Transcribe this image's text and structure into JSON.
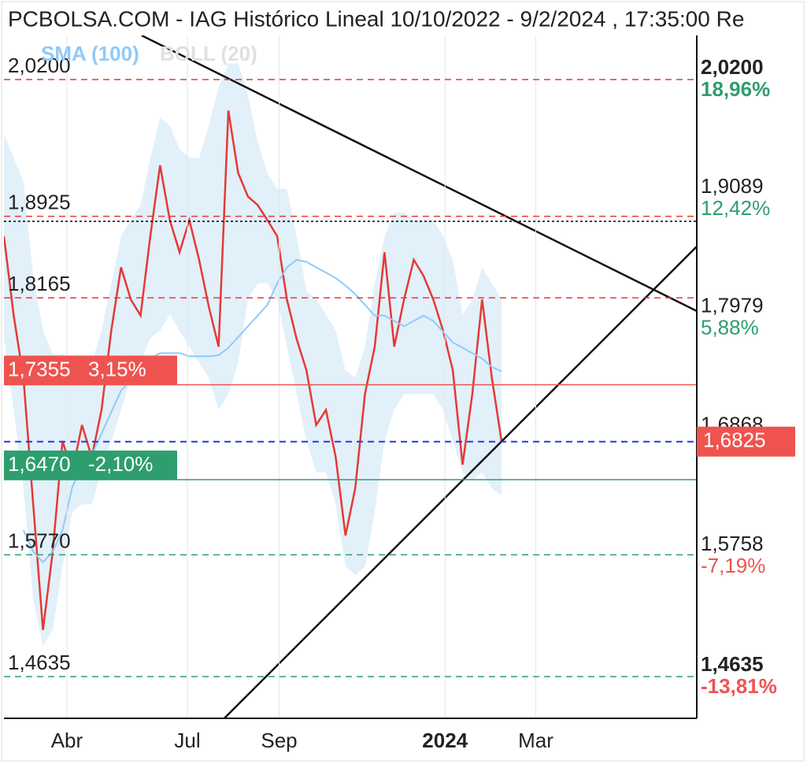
{
  "chart_data": {
    "type": "line",
    "title": "PCBOLSA.COM - IAG Histórico Lineal 10/10/2022 - 9/2/2024 , 17:35:00 Re",
    "x": [
      0,
      1,
      2,
      3,
      4,
      5,
      6,
      7,
      8,
      9,
      10,
      11,
      12,
      13,
      14,
      15,
      16,
      17,
      18,
      19,
      20,
      21,
      22,
      23,
      24,
      25,
      26,
      27,
      28,
      29,
      30,
      31,
      32,
      33,
      34,
      35,
      36,
      37,
      38,
      39,
      40,
      41,
      42,
      43,
      44,
      45,
      46,
      47,
      48,
      49,
      50,
      51
    ],
    "series": [
      {
        "color": "#e53935",
        "values": [
          1.874,
          1.8,
          1.742,
          1.624,
          1.507,
          1.58,
          1.683,
          1.654,
          1.698,
          1.668,
          1.712,
          1.786,
          1.845,
          1.815,
          1.8,
          1.874,
          1.94,
          1.889,
          1.859,
          1.889,
          1.852,
          1.808,
          1.771,
          1.991,
          1.933,
          1.911,
          1.903,
          1.889,
          1.874,
          1.815,
          1.778,
          1.749,
          1.698,
          1.712,
          1.668,
          1.595,
          1.639,
          1.727,
          1.771,
          1.859,
          1.771,
          1.815,
          1.852,
          1.837,
          1.815,
          1.786,
          1.749,
          1.661,
          1.727,
          1.815,
          1.742,
          1.6825
        ]
      },
      {
        "name": "SMA (100)",
        "color": "#90caf9",
        "values": [
          null,
          null,
          1.6,
          1.58,
          1.57,
          1.58,
          1.6,
          1.64,
          1.66,
          1.67,
          1.69,
          1.71,
          1.73,
          1.74,
          1.75,
          1.76,
          1.765,
          1.765,
          1.765,
          1.762,
          1.762,
          1.762,
          1.763,
          1.77,
          1.78,
          1.79,
          1.8,
          1.81,
          1.83,
          1.845,
          1.852,
          1.85,
          1.845,
          1.84,
          1.835,
          1.828,
          1.82,
          1.81,
          1.8,
          1.8,
          1.795,
          1.79,
          1.795,
          1.8,
          1.795,
          1.785,
          1.775,
          1.77,
          1.765,
          1.76,
          1.752,
          1.748
        ]
      }
    ],
    "bollinger": {
      "name": "BOLL (20)",
      "color": "#d6eaf8",
      "legend_color": "#e0e0e0",
      "upper": [
        1.969,
        1.947,
        1.925,
        1.837,
        1.786,
        1.764,
        1.764,
        1.742,
        1.749,
        1.756,
        1.786,
        1.83,
        1.874,
        1.889,
        1.903,
        1.947,
        1.984,
        1.977,
        1.955,
        1.947,
        1.947,
        1.977,
        2.013,
        2.035,
        2.035,
        2.006,
        1.962,
        1.933,
        1.918,
        1.918,
        1.874,
        1.823,
        1.815,
        1.801,
        1.786,
        1.749,
        1.742,
        1.771,
        1.83,
        1.874,
        1.896,
        1.896,
        1.889,
        1.889,
        1.889,
        1.874,
        1.852,
        1.801,
        1.815,
        1.845,
        1.83,
        1.815
      ],
      "lower": [
        1.779,
        1.712,
        1.639,
        1.536,
        1.492,
        1.507,
        1.566,
        1.617,
        1.624,
        1.624,
        1.654,
        1.683,
        1.712,
        1.742,
        1.756,
        1.779,
        1.786,
        1.801,
        1.786,
        1.771,
        1.756,
        1.742,
        1.712,
        1.727,
        1.756,
        1.815,
        1.83,
        1.83,
        1.815,
        1.771,
        1.727,
        1.683,
        1.654,
        1.654,
        1.624,
        1.566,
        1.558,
        1.566,
        1.617,
        1.683,
        1.712,
        1.727,
        1.727,
        1.727,
        1.727,
        1.712,
        1.683,
        1.654,
        1.646,
        1.654,
        1.639,
        1.632
      ]
    },
    "xlim": [
      0,
      71
    ],
    "ylim": [
      1.4246,
      2.0611
    ],
    "xticks": [
      {
        "value": 6.45,
        "label": "Abr"
      },
      {
        "value": 18.8,
        "label": "Jul"
      },
      {
        "value": 28.2,
        "label": "Sep"
      },
      {
        "value": 45.2,
        "label": "2024",
        "bold": true
      },
      {
        "value": 54.5,
        "label": "Mar"
      }
    ],
    "left_levels": [
      {
        "value": 2.02,
        "label": "2,0200",
        "color": "#e53935",
        "dashed": true
      },
      {
        "value": 1.8925,
        "label": "1,8925",
        "color": "#e53935",
        "dashed": true
      },
      {
        "value": 1.8165,
        "label": "1,8165",
        "color": "#e53935",
        "dashed": true
      },
      {
        "value": 1.7355,
        "label": "1,7355",
        "change": {
          "value": 3.15,
          "label": "3,15%"
        },
        "color": "#ef5350",
        "dashed": false
      },
      {
        "value": 1.647,
        "label": "1,6470",
        "change": {
          "value": -2.1,
          "label": "-2,10%"
        },
        "color": "#2e9e6e",
        "dashed": false
      },
      {
        "value": 1.577,
        "label": "1,5770",
        "color": "#2e9e6e",
        "dashed": true
      },
      {
        "value": 1.4635,
        "label": "1,4635",
        "color": "#2e9e6e",
        "dashed": true
      }
    ],
    "reference_line": {
      "value": 1.8878,
      "color": "#000000"
    },
    "right_labels": [
      {
        "value": 2.02,
        "label": "2,0200",
        "change": {
          "value": 18.96,
          "label": "18,96%"
        },
        "bold": true
      },
      {
        "value": 1.9089,
        "label": "1,9089",
        "change": {
          "value": 12.42,
          "label": "12,42%"
        }
      },
      {
        "value": 1.7979,
        "label": "1,7979",
        "change": {
          "value": 5.88,
          "label": "5,88%"
        }
      },
      {
        "value": 1.6868,
        "label": "1,6868"
      },
      {
        "value": 1.5758,
        "label": "1,5758",
        "change": {
          "value": -7.19,
          "label": "-7,19%"
        }
      },
      {
        "value": 1.4635,
        "label": "1,4635",
        "change": {
          "value": -13.81,
          "label": "-13,81%"
        },
        "bold": true
      }
    ],
    "current": {
      "value": 1.6825,
      "label": "1,6825",
      "color": "#ef5350",
      "line_color": "#1e3ed8"
    },
    "trendlines": [
      {
        "x": [
          14.11,
          71
        ],
        "y": [
          2.0611,
          1.8042
        ]
      },
      {
        "x": [
          22.58,
          71
        ],
        "y": [
          1.4246,
          1.8644
        ]
      }
    ]
  }
}
